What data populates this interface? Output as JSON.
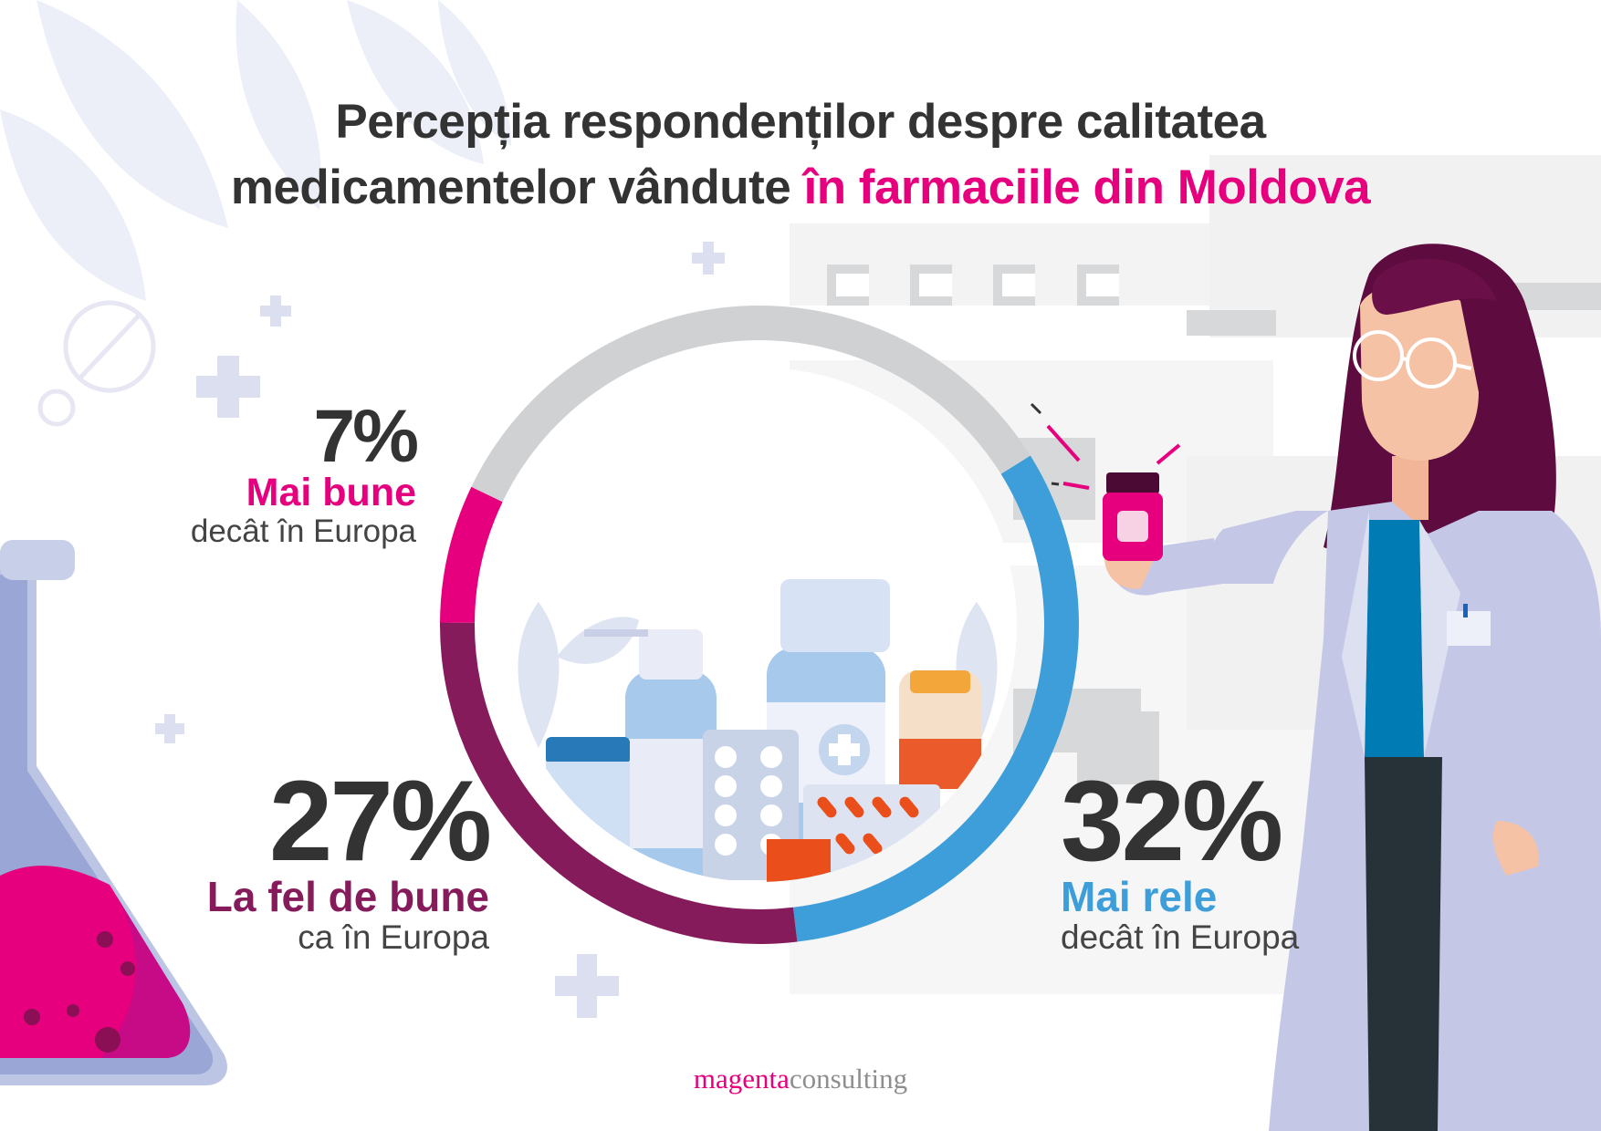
{
  "title": {
    "line1": "Percepția respondenților despre calitatea",
    "line2_plain": "medicamentelor vândute",
    "line2_accent": "în farmaciile din Moldova"
  },
  "chart_data": {
    "type": "pie",
    "categories": [
      "Mai bune",
      "La fel de bune",
      "Mai rele"
    ],
    "values": [
      7,
      27,
      32
    ],
    "value_labels": [
      "7%",
      "27%",
      "32%"
    ],
    "sublabels": [
      "decât în Europa",
      "ca în Europa",
      "decât în Europa"
    ],
    "colors": [
      "#e6007e",
      "#861b5b",
      "#3e9ed9"
    ],
    "remainder_color": "#d0d1d3"
  },
  "brand": {
    "part1": "magenta",
    "part2": "consulting"
  },
  "colors": {
    "accent": "#e6007e",
    "text": "#333333",
    "plum": "#861b5b",
    "blue": "#3e9ed9"
  }
}
